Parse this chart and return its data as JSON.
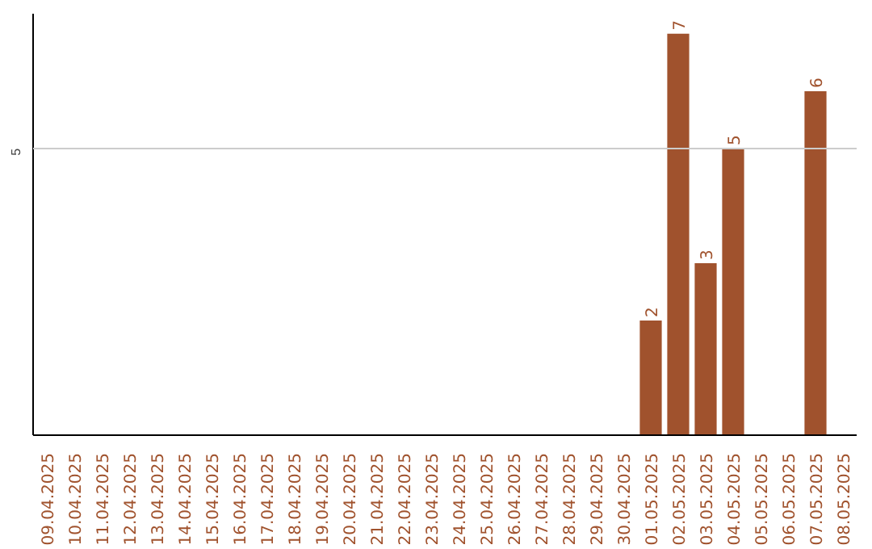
{
  "chart_data": {
    "type": "bar",
    "categories": [
      "09.04.2025",
      "10.04.2025",
      "11.04.2025",
      "12.04.2025",
      "13.04.2025",
      "14.04.2025",
      "15.04.2025",
      "16.04.2025",
      "17.04.2025",
      "18.04.2025",
      "19.04.2025",
      "20.04.2025",
      "21.04.2025",
      "22.04.2025",
      "23.04.2025",
      "24.04.2025",
      "25.04.2025",
      "26.04.2025",
      "27.04.2025",
      "28.04.2025",
      "29.04.2025",
      "30.04.2025",
      "01.05.2025",
      "02.05.2025",
      "03.05.2025",
      "04.05.2025",
      "05.05.2025",
      "06.05.2025",
      "07.05.2025",
      "08.05.2025"
    ],
    "values": [
      null,
      null,
      null,
      null,
      null,
      null,
      null,
      null,
      null,
      null,
      null,
      null,
      null,
      null,
      null,
      null,
      null,
      null,
      null,
      null,
      null,
      null,
      2,
      7,
      3,
      5,
      null,
      null,
      6,
      null
    ],
    "color": "#a0522d",
    "ylim": [
      0,
      7.35
    ],
    "data_labels": true,
    "ref_lines": [
      {
        "axis": "y",
        "value": 5,
        "label": "5",
        "color": "#cccccc"
      }
    ]
  }
}
